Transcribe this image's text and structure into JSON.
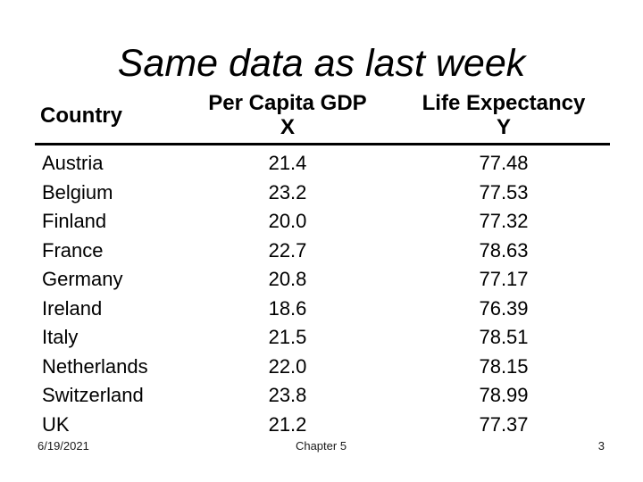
{
  "slide": {
    "title": "Same data as last week",
    "table": {
      "header": {
        "country_label": "Country",
        "gdp_label": "Per Capita GDP",
        "gdp_sub_label": "X",
        "life_label": "Life Expectancy",
        "life_sub_label": "Y"
      },
      "rows": [
        {
          "country": "Austria",
          "gdp": "21.4",
          "life": "77.48"
        },
        {
          "country": "Belgium",
          "gdp": "23.2",
          "life": "77.53"
        },
        {
          "country": "Finland",
          "gdp": "20.0",
          "life": "77.32"
        },
        {
          "country": "France",
          "gdp": "22.7",
          "life": "78.63"
        },
        {
          "country": "Germany",
          "gdp": "20.8",
          "life": "77.17"
        },
        {
          "country": "Ireland",
          "gdp": "18.6",
          "life": "76.39"
        },
        {
          "country": "Italy",
          "gdp": "21.5",
          "life": "78.51"
        },
        {
          "country": "Netherlands",
          "gdp": "22.0",
          "life": "78.15"
        },
        {
          "country": "Switzerland",
          "gdp": "23.8",
          "life": "78.99"
        },
        {
          "country": "UK",
          "gdp": "21.2",
          "life": "77.37"
        }
      ]
    },
    "footer": {
      "date": "6/19/2021",
      "chapter": "Chapter 5",
      "page_number": "3"
    },
    "colors": {
      "background": "#ffffff",
      "text": "#000000",
      "rule": "#000000"
    }
  }
}
